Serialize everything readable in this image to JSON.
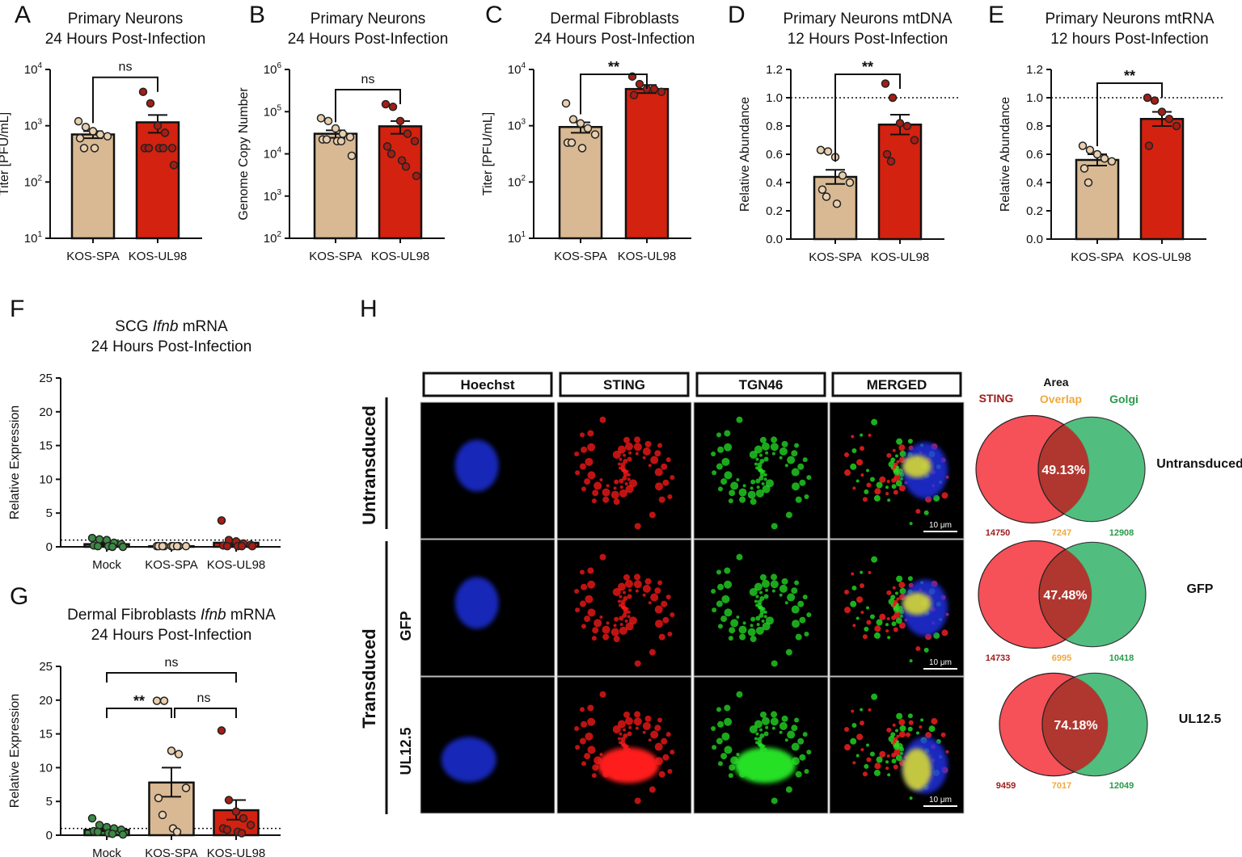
{
  "colors": {
    "spa": "#d9b993",
    "ul98": "#d3220f",
    "mock": "#3d8a45",
    "spa_dot": "#e8cfae",
    "ul98_dot": "#a51d14",
    "sting": "#a01c1c",
    "overlap": "#f2a93b",
    "golgi": "#2a9a4c"
  },
  "chart_data": [
    {
      "panel": "A",
      "type": "bar",
      "title": [
        "Primary Neurons",
        "24 Hours Post-Infection"
      ],
      "ylabel": "Titer [PFU/mL]",
      "scale": "log",
      "ylim": [
        10,
        10000
      ],
      "ticks": [
        {
          "v": 10,
          "label": "10",
          "exp": "1"
        },
        {
          "v": 100,
          "label": "10",
          "exp": "2"
        },
        {
          "v": 1000,
          "label": "10",
          "exp": "3"
        },
        {
          "v": 10000,
          "label": "10",
          "exp": "4"
        }
      ],
      "categories": [
        "KOS-SPA",
        "KOS-UL98"
      ],
      "bars": [
        {
          "group": "spa",
          "value": 700,
          "sem_low": 600,
          "sem_high": 800,
          "points": [
            1200,
            950,
            800,
            700,
            650,
            600,
            400,
            400
          ]
        },
        {
          "group": "ul98",
          "value": 1150,
          "sem_low": 750,
          "sem_high": 1550,
          "points": [
            4000,
            2500,
            1000,
            750,
            400,
            400,
            400,
            400,
            400,
            200
          ]
        }
      ],
      "significance": [
        {
          "from": 0,
          "to": 1,
          "label": "ns"
        }
      ]
    },
    {
      "panel": "B",
      "type": "bar",
      "title": [
        "Primary Neurons",
        "24 Hours Post-Infection"
      ],
      "ylabel": "Genome Copy Number",
      "scale": "log",
      "ylim": [
        100,
        1000000
      ],
      "ticks": [
        {
          "v": 100,
          "label": "10",
          "exp": "2"
        },
        {
          "v": 1000,
          "label": "10",
          "exp": "3"
        },
        {
          "v": 10000,
          "label": "10",
          "exp": "4"
        },
        {
          "v": 100000,
          "label": "10",
          "exp": "5"
        },
        {
          "v": 1000000,
          "label": "10",
          "exp": "6"
        }
      ],
      "categories": [
        "KOS-SPA",
        "KOS-UL98"
      ],
      "bars": [
        {
          "group": "spa",
          "value": 30000,
          "sem_low": 24000,
          "sem_high": 36000,
          "points": [
            70000,
            60000,
            40000,
            30000,
            25000,
            22000,
            22000,
            20000,
            20000,
            9000
          ]
        },
        {
          "group": "ul98",
          "value": 45000,
          "sem_low": 30000,
          "sem_high": 60000,
          "points": [
            150000,
            130000,
            60000,
            30000,
            20000,
            15000,
            10000,
            7000,
            5000,
            3000
          ]
        }
      ],
      "significance": [
        {
          "from": 0,
          "to": 1,
          "label": "ns"
        }
      ]
    },
    {
      "panel": "C",
      "type": "bar",
      "title": [
        "Dermal Fibroblasts",
        "24 Hours Post-Infection"
      ],
      "ylabel": "Titer [PFU/mL]",
      "scale": "log",
      "ylim": [
        10,
        10000
      ],
      "ticks": [
        {
          "v": 10,
          "label": "10",
          "exp": "1"
        },
        {
          "v": 100,
          "label": "10",
          "exp": "2"
        },
        {
          "v": 1000,
          "label": "10",
          "exp": "3"
        },
        {
          "v": 10000,
          "label": "10",
          "exp": "4"
        }
      ],
      "categories": [
        "KOS-SPA",
        "KOS-UL98"
      ],
      "bars": [
        {
          "group": "spa",
          "value": 950,
          "sem_low": 750,
          "sem_high": 1150,
          "points": [
            2500,
            1300,
            1100,
            900,
            700,
            500,
            500,
            400
          ]
        },
        {
          "group": "ul98",
          "value": 4500,
          "sem_low": 3800,
          "sem_high": 5300,
          "points": [
            7500,
            5500,
            4500,
            4500,
            4000,
            3500
          ]
        }
      ],
      "significance": [
        {
          "from": 0,
          "to": 1,
          "label": "**"
        }
      ]
    },
    {
      "panel": "D",
      "type": "bar",
      "title": [
        "Primary Neurons mtDNA",
        "12 Hours Post-Infection"
      ],
      "ylabel": "Relative Abundance",
      "scale": "linear",
      "ylim": [
        0,
        1.2
      ],
      "ticks": [
        {
          "v": 0,
          "label": "0.0"
        },
        {
          "v": 0.2,
          "label": "0.2"
        },
        {
          "v": 0.4,
          "label": "0.4"
        },
        {
          "v": 0.6,
          "label": "0.6"
        },
        {
          "v": 0.8,
          "label": "0.8"
        },
        {
          "v": 1.0,
          "label": "1.0"
        },
        {
          "v": 1.2,
          "label": "1.2"
        }
      ],
      "reference_line": 1.0,
      "categories": [
        "KOS-SPA",
        "KOS-UL98"
      ],
      "bars": [
        {
          "group": "spa",
          "value": 0.44,
          "sem_low": 0.39,
          "sem_high": 0.49,
          "points": [
            0.63,
            0.62,
            0.58,
            0.45,
            0.4,
            0.35,
            0.3,
            0.25
          ]
        },
        {
          "group": "ul98",
          "value": 0.81,
          "sem_low": 0.74,
          "sem_high": 0.88,
          "points": [
            1.1,
            1.0,
            0.82,
            0.8,
            0.7,
            0.6,
            0.55
          ]
        }
      ],
      "significance": [
        {
          "from": 0,
          "to": 1,
          "label": "**"
        }
      ]
    },
    {
      "panel": "E",
      "type": "bar",
      "title": [
        "Primary Neurons mtRNA",
        "12 hours Post-Infection"
      ],
      "ylabel": "Relative Abundance",
      "scale": "linear",
      "ylim": [
        0,
        1.2
      ],
      "ticks": [
        {
          "v": 0,
          "label": "0.0"
        },
        {
          "v": 0.2,
          "label": "0.2"
        },
        {
          "v": 0.4,
          "label": "0.4"
        },
        {
          "v": 0.6,
          "label": "0.6"
        },
        {
          "v": 0.8,
          "label": "0.8"
        },
        {
          "v": 1.0,
          "label": "1.0"
        },
        {
          "v": 1.2,
          "label": "1.2"
        }
      ],
      "reference_line": 1.0,
      "categories": [
        "KOS-SPA",
        "KOS-UL98"
      ],
      "bars": [
        {
          "group": "spa",
          "value": 0.56,
          "sem_low": 0.52,
          "sem_high": 0.6,
          "points": [
            0.66,
            0.63,
            0.6,
            0.57,
            0.55,
            0.5,
            0.4
          ]
        },
        {
          "group": "ul98",
          "value": 0.85,
          "sem_low": 0.8,
          "sem_high": 0.9,
          "points": [
            1.0,
            0.98,
            0.9,
            0.85,
            0.8,
            0.66
          ]
        }
      ],
      "significance": [
        {
          "from": 0,
          "to": 1,
          "label": "**"
        }
      ]
    },
    {
      "panel": "F",
      "type": "bar",
      "title": [
        [
          {
            "t": "SCG "
          },
          {
            "t": "Ifnb",
            "i": true
          },
          {
            "t": " mRNA"
          }
        ],
        "24 Hours Post-Infection"
      ],
      "ylabel": "Relative Expression",
      "scale": "linear",
      "ylim": [
        0,
        25
      ],
      "ticks": [
        {
          "v": 0,
          "label": "0"
        },
        {
          "v": 5,
          "label": "5"
        },
        {
          "v": 10,
          "label": "10"
        },
        {
          "v": 15,
          "label": "15"
        },
        {
          "v": 20,
          "label": "20"
        },
        {
          "v": 25,
          "label": "25"
        }
      ],
      "reference_line": 1,
      "categories": [
        "Mock",
        "KOS-SPA",
        "KOS-UL98"
      ],
      "bars": [
        {
          "group": "mock",
          "value": 0.4,
          "sem_low": 0.2,
          "sem_high": 0.6,
          "points": [
            1.3,
            1.1,
            1.0,
            0.6,
            0.4,
            0.2,
            0.1,
            0.1,
            0,
            0
          ]
        },
        {
          "group": "spa",
          "value": 0.1,
          "sem_low": 0.05,
          "sem_high": 0.15,
          "points": [
            0.1,
            0.1,
            0.1,
            0.1,
            0.1,
            0.1,
            0.1,
            0.1,
            0.1
          ]
        },
        {
          "group": "ul98",
          "value": 0.6,
          "sem_low": 0.3,
          "sem_high": 0.9,
          "points": [
            3.9,
            1.0,
            0.8,
            0.5,
            0.3,
            0.2,
            0.1,
            0.1,
            0.1,
            0.1
          ]
        }
      ],
      "significance": []
    },
    {
      "panel": "G",
      "type": "bar",
      "title": [
        [
          {
            "t": "Dermal Fibroblasts "
          },
          {
            "t": "Ifnb",
            "i": true
          },
          {
            "t": " mRNA"
          }
        ],
        "24 Hours Post-Infection"
      ],
      "ylabel": "Relative Expression",
      "scale": "linear",
      "ylim": [
        0,
        25
      ],
      "ticks": [
        {
          "v": 0,
          "label": "0"
        },
        {
          "v": 5,
          "label": "5"
        },
        {
          "v": 10,
          "label": "10"
        },
        {
          "v": 15,
          "label": "15"
        },
        {
          "v": 20,
          "label": "20"
        },
        {
          "v": 25,
          "label": "25"
        }
      ],
      "reference_line": 1,
      "categories": [
        "Mock",
        "KOS-SPA",
        "KOS-UL98"
      ],
      "bars": [
        {
          "group": "mock",
          "value": 0.8,
          "sem_low": 0.6,
          "sem_high": 1.0,
          "points": [
            2.5,
            1.5,
            1.2,
            1.0,
            0.8,
            0.6,
            0.5,
            0.3,
            0.2,
            0.1
          ]
        },
        {
          "group": "spa",
          "value": 7.8,
          "sem_low": 5.7,
          "sem_high": 10.0,
          "points": [
            19.9,
            19.9,
            12.5,
            12.0,
            7.0,
            5.5,
            3.0,
            1.0,
            0.5
          ]
        },
        {
          "group": "ul98",
          "value": 3.7,
          "sem_low": 2.3,
          "sem_high": 5.2,
          "points": [
            15.5,
            5.2,
            3.5,
            2.5,
            1.5,
            1.0,
            0.8,
            0.5,
            0.3
          ]
        }
      ],
      "significance": [
        {
          "from": 0,
          "to": 2,
          "label": "ns",
          "level": 2
        },
        {
          "from": 0,
          "to": 1,
          "label": "**",
          "level": 1
        },
        {
          "from": 1,
          "to": 2,
          "label": "ns",
          "level": 1
        }
      ]
    }
  ],
  "panel_h": {
    "letter": "H",
    "columns": [
      "Hoechst",
      "STING",
      "TGN46",
      "MERGED"
    ],
    "group_labels": [
      "Untransduced",
      "Transduced"
    ],
    "row_labels": [
      "GFP",
      "UL12.5"
    ],
    "scale_bar": "10 μm",
    "venn_header": {
      "title": "Area",
      "sting": "STING",
      "overlap": "Overlap",
      "golgi": "Golgi"
    },
    "venn": [
      {
        "label": "Untransduced",
        "percent": "49.13%",
        "sting": "14750",
        "overlap": "7247",
        "golgi": "12908"
      },
      {
        "label": "GFP",
        "percent": "47.48%",
        "sting": "14733",
        "overlap": "6995",
        "golgi": "10418"
      },
      {
        "label": "UL12.5",
        "percent": "74.18%",
        "sting": "9459",
        "overlap": "7017",
        "golgi": "12049"
      }
    ]
  }
}
